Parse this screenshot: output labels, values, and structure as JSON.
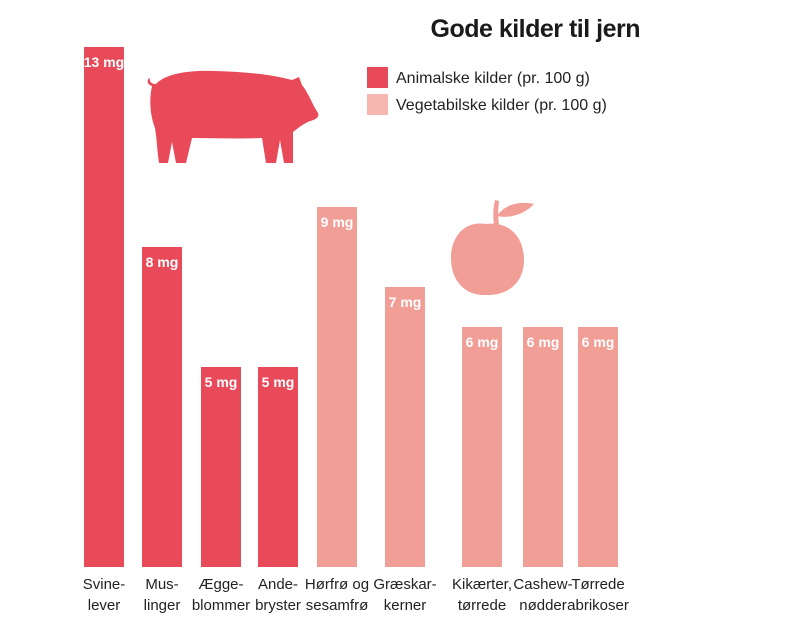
{
  "chart_data": {
    "type": "bar",
    "title": "Gode kilder til jern",
    "unit": "mg",
    "categories": [
      {
        "lines": [
          "Svine-",
          "lever"
        ],
        "group": "animal"
      },
      {
        "lines": [
          "Mus-",
          "linger"
        ],
        "group": "animal"
      },
      {
        "lines": [
          "Ægge-",
          "blommer"
        ],
        "group": "animal"
      },
      {
        "lines": [
          "Ande-",
          "bryster"
        ],
        "group": "animal"
      },
      {
        "lines": [
          "Hørfrø og",
          "sesamfrø"
        ],
        "group": "vegetable"
      },
      {
        "lines": [
          "Græskar-",
          "kerner"
        ],
        "group": "vegetable"
      },
      {
        "lines": [
          "Kikærter,",
          "tørrede"
        ],
        "group": "vegetable"
      },
      {
        "lines": [
          "Cashew-",
          "nødder"
        ],
        "group": "vegetable"
      },
      {
        "lines": [
          "Tørrede",
          "abrikoser"
        ],
        "group": "vegetable"
      }
    ],
    "values": [
      13,
      8,
      5,
      5,
      9,
      7,
      6,
      6,
      6
    ],
    "value_labels": [
      "13 mg",
      "8 mg",
      "5 mg",
      "5 mg",
      "9 mg",
      "7 mg",
      "6 mg",
      "6 mg",
      "6 mg"
    ],
    "ylim": [
      0,
      13
    ],
    "grid": false,
    "legend": {
      "placement": "top-right",
      "entries": [
        {
          "label": "Animalske kilder (pr. 100 g)",
          "group": "animal"
        },
        {
          "label": "Vegetabilske kilder (pr. 100 g)",
          "group": "vegetable"
        }
      ]
    },
    "colors": {
      "animal": "#e84a5a",
      "vegetable": "#f19e97"
    },
    "icons": [
      "pig-icon",
      "apple-icon"
    ]
  }
}
